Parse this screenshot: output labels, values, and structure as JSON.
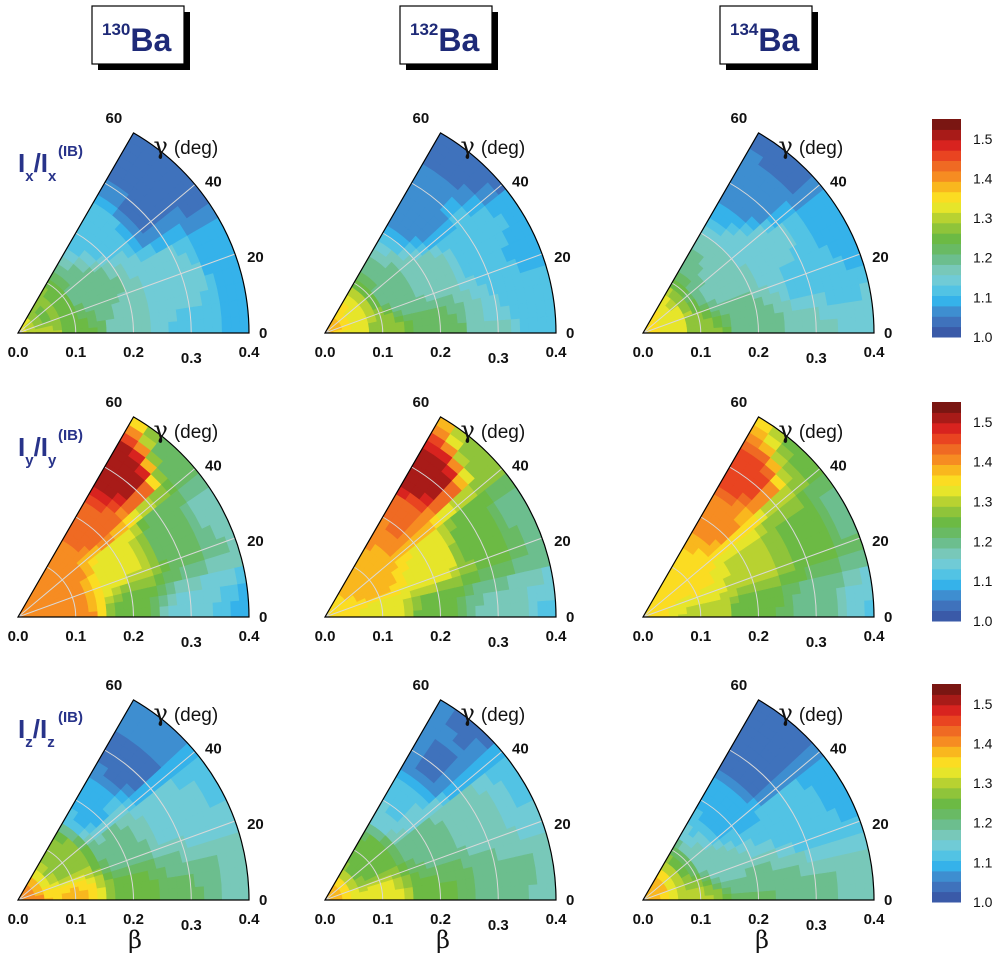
{
  "nuclei": [
    {
      "mass": "130",
      "symbol": "Ba"
    },
    {
      "mass": "132",
      "symbol": "Ba"
    },
    {
      "mass": "134",
      "symbol": "Ba"
    }
  ],
  "row_labels": [
    {
      "axis": "x",
      "sup": "(IB)"
    },
    {
      "axis": "y",
      "sup": "(IB)"
    },
    {
      "axis": "z",
      "sup": "(IB)"
    }
  ],
  "gamma_label": {
    "symbol": "γ",
    "unit": "(deg)"
  },
  "beta_label": "β",
  "chart_data": {
    "type": "contour",
    "layout": "3x3 polar wedge contour plots",
    "x_axis": {
      "label": "β",
      "ticks": [
        "0.0",
        "0.1",
        "0.2",
        "0.3",
        "0.4"
      ],
      "range": [
        0.0,
        0.4
      ]
    },
    "gamma_axis": {
      "label": "γ (deg)",
      "ticks": [
        "0",
        "20",
        "40",
        "60"
      ],
      "range": [
        0,
        60
      ]
    },
    "colorbar": {
      "ticks": [
        "1.0",
        "1.1",
        "1.2",
        "1.3",
        "1.4",
        "1.5"
      ],
      "range": [
        1.0,
        1.55
      ],
      "colors": [
        "#3a5aa8",
        "#3f72bc",
        "#3e8ed0",
        "#35b2ea",
        "#52c3e4",
        "#70cbd6",
        "#78c8b9",
        "#6cbe8e",
        "#69ba64",
        "#6cba44",
        "#8fc43a",
        "#b8d231",
        "#e6e52a",
        "#fbdc22",
        "#f9b71e",
        "#f68c22",
        "#ef6a23",
        "#e94421",
        "#d8231f",
        "#a81b18",
        "#7a1612"
      ]
    },
    "panels": [
      {
        "row": "x",
        "nucleus": "130Ba",
        "anchors": [
          [
            0,
            0,
            1.34
          ],
          [
            0.05,
            0,
            1.3
          ],
          [
            0.1,
            0,
            1.24
          ],
          [
            0.2,
            0,
            1.16
          ],
          [
            0.3,
            0,
            1.12
          ],
          [
            0.4,
            0,
            1.09
          ],
          [
            0.05,
            30,
            1.26
          ],
          [
            0.15,
            30,
            1.19
          ],
          [
            0.28,
            18,
            1.155
          ],
          [
            0.3,
            45,
            1.05
          ],
          [
            0.4,
            45,
            1.03
          ],
          [
            0.35,
            55,
            1.05
          ],
          [
            0.4,
            20,
            1.08
          ],
          [
            0.22,
            52,
            1.12
          ]
        ]
      },
      {
        "row": "x",
        "nucleus": "132Ba",
        "anchors": [
          [
            0,
            0,
            1.38
          ],
          [
            0.05,
            0,
            1.34
          ],
          [
            0.1,
            0,
            1.28
          ],
          [
            0.2,
            0,
            1.22
          ],
          [
            0.3,
            0,
            1.16
          ],
          [
            0.4,
            0,
            1.12
          ],
          [
            0.15,
            30,
            1.19
          ],
          [
            0.2,
            30,
            1.17
          ],
          [
            0.3,
            30,
            1.12
          ],
          [
            0.35,
            8,
            1.11
          ],
          [
            0.25,
            50,
            1.07
          ],
          [
            0.4,
            50,
            1.03
          ],
          [
            0.38,
            25,
            1.1
          ]
        ]
      },
      {
        "row": "x",
        "nucleus": "134Ba",
        "anchors": [
          [
            0,
            0,
            1.36
          ],
          [
            0.05,
            0,
            1.33
          ],
          [
            0.1,
            0,
            1.27
          ],
          [
            0.2,
            0,
            1.2
          ],
          [
            0.3,
            0,
            1.17
          ],
          [
            0.4,
            0,
            1.15
          ],
          [
            0.15,
            30,
            1.18
          ],
          [
            0.25,
            35,
            1.15
          ],
          [
            0.3,
            20,
            1.12
          ],
          [
            0.35,
            10,
            1.13
          ],
          [
            0.3,
            50,
            1.07
          ],
          [
            0.4,
            50,
            1.04
          ],
          [
            0.4,
            25,
            1.08
          ]
        ]
      },
      {
        "row": "y",
        "nucleus": "130Ba",
        "anchors": [
          [
            0,
            0,
            1.4
          ],
          [
            0.1,
            0,
            1.4
          ],
          [
            0.2,
            0,
            1.24
          ],
          [
            0.3,
            0,
            1.14
          ],
          [
            0.4,
            0,
            1.1
          ],
          [
            0.1,
            40,
            1.4
          ],
          [
            0.2,
            50,
            1.44
          ],
          [
            0.3,
            55,
            1.52
          ],
          [
            0.2,
            30,
            1.32
          ],
          [
            0.3,
            30,
            1.22
          ],
          [
            0.4,
            30,
            1.17
          ],
          [
            0.4,
            45,
            1.22
          ]
        ]
      },
      {
        "row": "y",
        "nucleus": "132Ba",
        "anchors": [
          [
            0,
            0,
            1.36
          ],
          [
            0.1,
            0,
            1.33
          ],
          [
            0.2,
            0,
            1.24
          ],
          [
            0.3,
            0,
            1.17
          ],
          [
            0.4,
            0,
            1.13
          ],
          [
            0.1,
            40,
            1.38
          ],
          [
            0.2,
            50,
            1.42
          ],
          [
            0.3,
            55,
            1.51
          ],
          [
            0.2,
            30,
            1.33
          ],
          [
            0.3,
            30,
            1.25
          ],
          [
            0.4,
            30,
            1.19
          ],
          [
            0.4,
            45,
            1.27
          ]
        ]
      },
      {
        "row": "y",
        "nucleus": "134Ba",
        "anchors": [
          [
            0,
            0,
            1.36
          ],
          [
            0.1,
            0,
            1.31
          ],
          [
            0.2,
            0,
            1.24
          ],
          [
            0.3,
            0,
            1.19
          ],
          [
            0.4,
            0,
            1.13
          ],
          [
            0.1,
            40,
            1.35
          ],
          [
            0.2,
            50,
            1.4
          ],
          [
            0.3,
            55,
            1.46
          ],
          [
            0.2,
            30,
            1.31
          ],
          [
            0.3,
            30,
            1.26
          ],
          [
            0.4,
            30,
            1.2
          ],
          [
            0.4,
            45,
            1.26
          ]
        ]
      },
      {
        "row": "z",
        "nucleus": "130Ba",
        "anchors": [
          [
            0,
            0,
            1.41
          ],
          [
            0.1,
            0,
            1.37
          ],
          [
            0.2,
            0,
            1.25
          ],
          [
            0.3,
            0,
            1.21
          ],
          [
            0.4,
            0,
            1.17
          ],
          [
            0.1,
            40,
            1.28
          ],
          [
            0.2,
            50,
            1.1
          ],
          [
            0.3,
            50,
            1.04
          ],
          [
            0.4,
            50,
            1.07
          ],
          [
            0.2,
            30,
            1.19
          ],
          [
            0.3,
            30,
            1.15
          ],
          [
            0.4,
            30,
            1.13
          ]
        ]
      },
      {
        "row": "z",
        "nucleus": "132Ba",
        "anchors": [
          [
            0,
            0,
            1.38
          ],
          [
            0.1,
            0,
            1.33
          ],
          [
            0.2,
            0,
            1.24
          ],
          [
            0.3,
            0,
            1.2
          ],
          [
            0.4,
            0,
            1.18
          ],
          [
            0.1,
            40,
            1.25
          ],
          [
            0.2,
            50,
            1.13
          ],
          [
            0.3,
            50,
            1.05
          ],
          [
            0.4,
            50,
            1.05
          ],
          [
            0.2,
            30,
            1.2
          ],
          [
            0.3,
            30,
            1.17
          ],
          [
            0.4,
            30,
            1.13
          ]
        ]
      },
      {
        "row": "z",
        "nucleus": "134Ba",
        "anchors": [
          [
            0,
            0,
            1.38
          ],
          [
            0.1,
            0,
            1.29
          ],
          [
            0.2,
            0,
            1.21
          ],
          [
            0.3,
            0,
            1.19
          ],
          [
            0.4,
            0,
            1.17
          ],
          [
            0.15,
            25,
            1.16
          ],
          [
            0.2,
            45,
            1.1
          ],
          [
            0.3,
            50,
            1.03
          ],
          [
            0.4,
            50,
            1.04
          ],
          [
            0.3,
            30,
            1.12
          ],
          [
            0.4,
            30,
            1.1
          ]
        ]
      }
    ]
  }
}
